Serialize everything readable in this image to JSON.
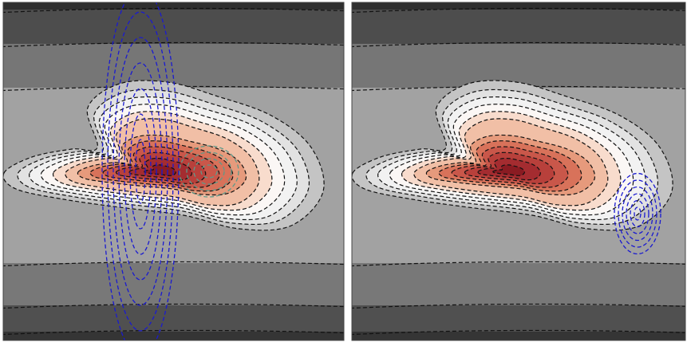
{
  "chart_data": [
    {
      "type": "contour"
    },
    {
      "type": "contour"
    }
  ]
}
